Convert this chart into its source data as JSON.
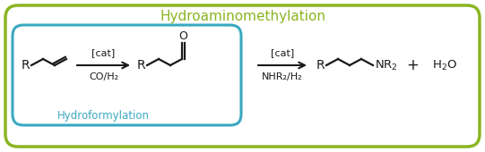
{
  "title": "Hydroaminomethylation",
  "title_color": "#8ab520",
  "title_fontsize": 11,
  "outer_box_color": "#8ab520",
  "inner_box_color": "#3aa8c1",
  "inner_label": "Hydroformylation",
  "inner_label_color": "#3aa8c1",
  "arrow1_label_top": "[cat]",
  "arrow1_label_bottom": "CO/H₂",
  "arrow2_label_top": "[cat]",
  "arrow2_label_bottom": "NHR₂/H₂",
  "plus_sign": "+",
  "water": "H₂O",
  "bg_color": "#ffffff",
  "line_color": "#1a1a1a"
}
